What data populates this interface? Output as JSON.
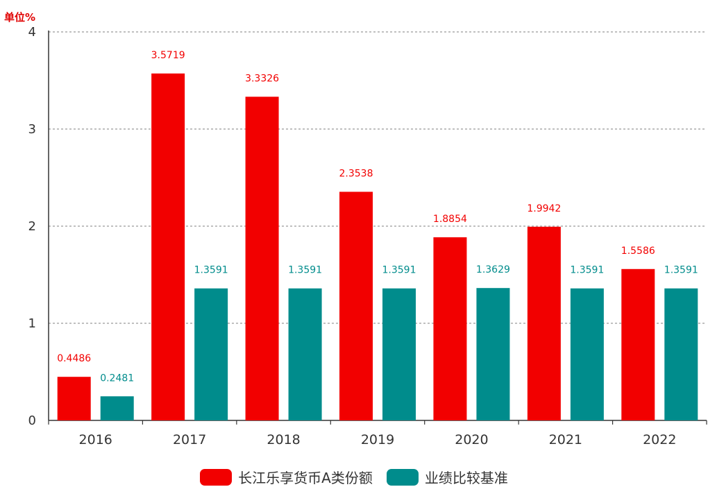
{
  "unit_label": "单位%",
  "colors": {
    "series_1": "#f20000",
    "series_2": "#008c8c",
    "unit_label": "#e00000",
    "axis": "#333333",
    "grid": "#aaaaaa",
    "tick_text": "#333333"
  },
  "legend": {
    "items": [
      {
        "label": "长江乐享货币A类份额"
      },
      {
        "label": "业绩比较基准"
      }
    ],
    "placement": "bottom-center"
  },
  "chart_data": {
    "type": "bar",
    "categories": [
      "2016",
      "2017",
      "2018",
      "2019",
      "2020",
      "2021",
      "2022"
    ],
    "series": [
      {
        "name": "长江乐享货币A类份额",
        "values": [
          0.4486,
          3.5719,
          3.3326,
          2.3538,
          1.8854,
          1.9942,
          1.5586
        ],
        "labels": [
          "0.4486",
          "3.5719",
          "3.3326",
          "2.3538",
          "1.8854",
          "1.9942",
          "1.5586"
        ]
      },
      {
        "name": "业绩比较基准",
        "values": [
          0.2481,
          1.3591,
          1.3591,
          1.3591,
          1.3629,
          1.3591,
          1.3591
        ],
        "labels": [
          "0.2481",
          "1.3591",
          "1.3591",
          "1.3591",
          "1.3629",
          "1.3591",
          "1.3591"
        ]
      }
    ],
    "ylim": [
      0,
      4
    ],
    "yticks": [
      "0",
      "1",
      "2",
      "3",
      "4"
    ],
    "xlabel": "",
    "ylabel": "",
    "grid": "horizontal dotted"
  }
}
